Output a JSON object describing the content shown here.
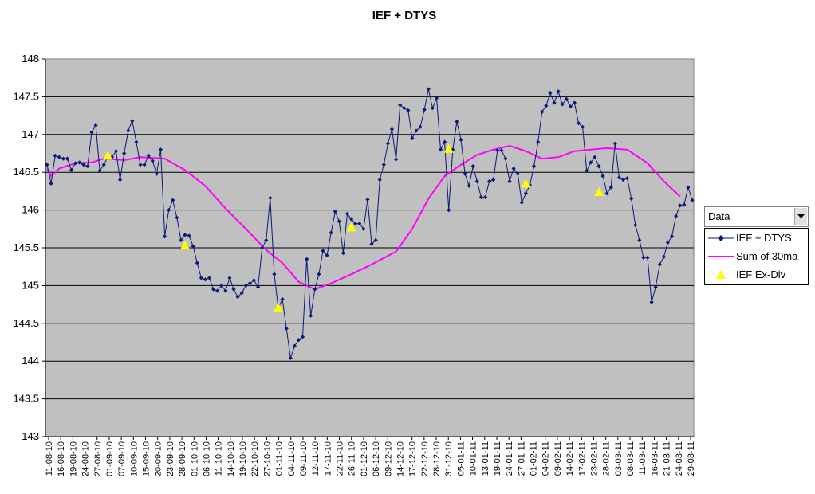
{
  "chart_data": {
    "type": "line",
    "title": "IEF + DTYS",
    "ylim": [
      143,
      148
    ],
    "yticks": [
      "143",
      "143.5",
      "144",
      "144.5",
      "145",
      "145.5",
      "146",
      "146.5",
      "147",
      "147.5",
      "148"
    ],
    "yticks_values": [
      143,
      143.5,
      144,
      144.5,
      145,
      145.5,
      146,
      146.5,
      147,
      147.5,
      148
    ],
    "grid": true,
    "legend_position": "right",
    "x_tick_labels": [
      "11-08-10",
      "16-08-10",
      "19-08-10",
      "24-08-10",
      "27-08-10",
      "01-09-10",
      "07-09-10",
      "10-09-10",
      "15-09-10",
      "20-09-10",
      "23-09-10",
      "28-09-10",
      "01-10-10",
      "06-10-10",
      "11-10-10",
      "14-10-10",
      "19-10-10",
      "22-10-10",
      "27-10-10",
      "01-11-10",
      "04-11-10",
      "09-11-10",
      "12-11-10",
      "17-11-10",
      "22-11-10",
      "26-11-10",
      "01-12-10",
      "06-12-10",
      "09-12-10",
      "14-12-10",
      "17-12-10",
      "22-12-10",
      "28-12-10",
      "31-12-10",
      "05-01-11",
      "10-01-11",
      "13-01-11",
      "19-01-11",
      "24-01-11",
      "27-01-11",
      "01-02-11",
      "04-02-11",
      "09-02-11",
      "14-02-11",
      "17-02-11",
      "23-02-11",
      "28-02-11",
      "03-03-11",
      "08-03-11",
      "11-03-11",
      "16-03-11",
      "21-03-11",
      "24-03-11",
      "29-03-11"
    ],
    "series": [
      {
        "name": "IEF + DTYS",
        "color": "#0a1a7a",
        "marker": "diamond",
        "values": [
          146.6,
          146.35,
          146.72,
          146.7,
          146.68,
          146.68,
          146.53,
          146.62,
          146.63,
          146.6,
          146.58,
          147.03,
          147.12,
          146.52,
          146.6,
          146.7,
          146.7,
          146.78,
          146.4,
          146.75,
          147.05,
          147.18,
          146.9,
          146.6,
          146.6,
          146.72,
          146.65,
          146.48,
          146.8,
          145.65,
          146.0,
          146.13,
          145.9,
          145.6,
          145.67,
          145.66,
          145.52,
          145.3,
          145.1,
          145.08,
          145.1,
          144.95,
          144.93,
          145.0,
          144.93,
          145.1,
          144.95,
          144.85,
          144.9,
          145.0,
          145.03,
          145.07,
          144.98,
          145.5,
          145.6,
          146.16,
          145.15,
          144.7,
          144.82,
          144.43,
          144.04,
          144.2,
          144.28,
          144.32,
          145.35,
          144.6,
          144.95,
          145.15,
          145.46,
          145.4,
          145.7,
          145.98,
          145.85,
          145.43,
          145.95,
          145.88,
          145.82,
          145.82,
          145.75,
          146.14,
          145.55,
          145.6,
          146.4,
          146.6,
          146.88,
          147.07,
          146.67,
          147.39,
          147.35,
          147.32,
          146.95,
          147.05,
          147.1,
          147.33,
          147.6,
          147.35,
          147.48,
          146.8,
          146.9,
          146.0,
          146.8,
          147.17,
          146.93,
          146.48,
          146.32,
          146.58,
          146.38,
          146.17,
          146.17,
          146.38,
          146.4,
          146.79,
          146.79,
          146.68,
          146.38,
          146.55,
          146.48,
          146.1,
          146.22,
          146.33,
          146.58,
          146.9,
          147.3,
          147.38,
          147.55,
          147.42,
          147.57,
          147.4,
          147.47,
          147.37,
          147.42,
          147.15,
          147.1,
          146.52,
          146.63,
          146.7,
          146.58,
          146.45,
          146.22,
          146.3,
          146.88,
          146.43,
          146.4,
          146.42,
          146.15,
          145.8,
          145.6,
          145.37,
          145.37,
          144.78,
          144.98,
          145.28,
          145.38,
          145.57,
          145.65,
          145.92,
          146.06,
          146.07,
          146.3,
          146.13
        ]
      },
      {
        "name": "Sum of 30ma",
        "color": "#ff00ff",
        "values_by_index": [
          [
            0,
            146.55
          ],
          [
            1,
            146.45
          ],
          [
            3,
            146.55
          ],
          [
            7,
            146.62
          ],
          [
            11,
            146.63
          ],
          [
            14,
            146.68
          ],
          [
            19,
            146.66
          ],
          [
            23,
            146.7
          ],
          [
            29,
            146.68
          ],
          [
            34,
            146.53
          ],
          [
            39,
            146.32
          ],
          [
            44,
            146.02
          ],
          [
            49,
            145.75
          ],
          [
            54,
            145.47
          ],
          [
            58,
            145.3
          ],
          [
            62,
            145.05
          ],
          [
            66,
            144.95
          ],
          [
            70,
            145.03
          ],
          [
            75,
            145.15
          ],
          [
            80,
            145.28
          ],
          [
            86,
            145.45
          ],
          [
            90,
            145.75
          ],
          [
            94,
            146.15
          ],
          [
            98,
            146.45
          ],
          [
            102,
            146.6
          ],
          [
            106,
            146.73
          ],
          [
            110,
            146.8
          ],
          [
            114,
            146.85
          ],
          [
            118,
            146.78
          ],
          [
            122,
            146.68
          ],
          [
            126,
            146.7
          ],
          [
            130,
            146.78
          ],
          [
            134,
            146.8
          ],
          [
            138,
            146.82
          ],
          [
            143,
            146.8
          ],
          [
            148,
            146.62
          ],
          [
            152,
            146.38
          ],
          [
            156,
            146.18
          ]
        ]
      },
      {
        "name": "IEF Ex-Div",
        "color": "#ffff00",
        "marker": "triangle",
        "points_by_index": [
          [
            15,
            146.72
          ],
          [
            34,
            145.53
          ],
          [
            57,
            144.71
          ],
          [
            75,
            145.77
          ],
          [
            99,
            146.81
          ],
          [
            118,
            146.35
          ],
          [
            136,
            146.24
          ]
        ]
      }
    ]
  },
  "dropdown": {
    "label": "Data"
  },
  "legend": {
    "items": [
      "IEF + DTYS",
      "Sum of 30ma",
      "IEF Ex-Div"
    ]
  }
}
